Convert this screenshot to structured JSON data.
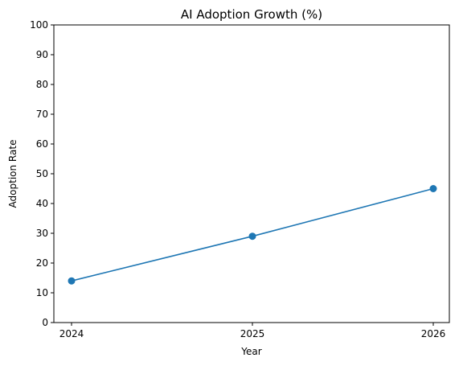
{
  "chart_data": {
    "type": "line",
    "title": "AI Adoption Growth (%)",
    "xlabel": "Year",
    "ylabel": "Adoption Rate",
    "x": [
      "2024",
      "2025",
      "2026"
    ],
    "series": [
      {
        "values": [
          14,
          29,
          45
        ],
        "color": "#1f77b4",
        "marker": "circle"
      }
    ],
    "ylim": [
      0,
      100
    ],
    "yticks": [
      0,
      10,
      20,
      30,
      40,
      50,
      60,
      70,
      80,
      90,
      100
    ],
    "grid": false,
    "legend": "none"
  }
}
